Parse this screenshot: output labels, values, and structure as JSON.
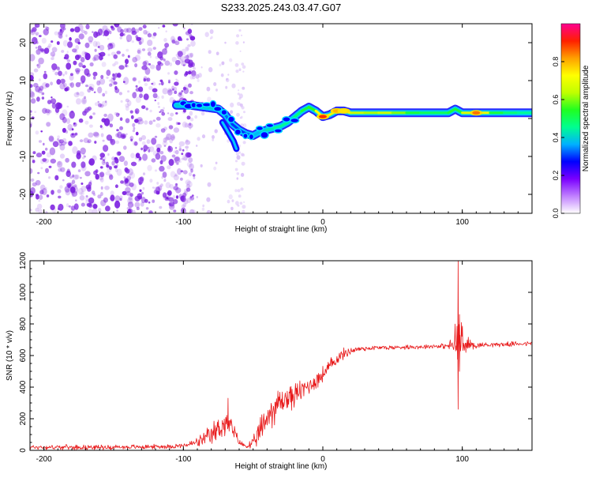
{
  "title": "S233.2025.243.03.47.G07",
  "colors": {
    "snr_line": "#e8191a",
    "axis": "#000000",
    "speckle": "#7b1fe0",
    "track_core": "#ff2020",
    "track_edge": "#2020ff"
  },
  "chart_data": [
    {
      "type": "heatmap",
      "title": "S233.2025.243.03.47.G07",
      "xlabel": "Height of straight line (km)",
      "ylabel": "Frequency (Hz)",
      "xlim": [
        -210,
        150
      ],
      "ylim": [
        -25,
        25
      ],
      "xticks": [
        -200,
        -100,
        0,
        100
      ],
      "yticks": [
        -20,
        -10,
        0,
        10,
        20
      ],
      "colorbar": {
        "label": "Normalized spectral amplitude",
        "range": [
          0.0,
          1.0
        ],
        "ticks": [
          "0.0",
          "0.2",
          "0.4",
          "0.6",
          "0.8"
        ],
        "stops": [
          "#ffffff",
          "#c080ff",
          "#7a00ff",
          "#0000ff",
          "#00b0ff",
          "#00ff90",
          "#20ff20",
          "#c0ff00",
          "#ffff00",
          "#ffa000",
          "#ff2000",
          "#ff0090"
        ]
      },
      "noise_region": {
        "x": [
          -210,
          -100
        ],
        "amplitude": "low"
      },
      "sparse_noise": {
        "x": [
          -100,
          -55
        ],
        "amplitude": "very low"
      },
      "ridge": {
        "x": [
          -105,
          -95,
          -85,
          -75,
          -70,
          -65,
          -60,
          -55,
          -50,
          -45,
          -40,
          -35,
          -30,
          -25,
          -20,
          -15,
          -10,
          -5,
          0,
          5,
          10,
          15,
          20,
          30,
          40,
          50,
          60,
          70,
          80,
          90,
          95,
          100,
          110,
          120,
          130,
          140,
          150
        ],
        "frequency_hz": [
          3.5,
          3.5,
          3.0,
          2.5,
          1.0,
          -1.5,
          -3.0,
          -4.0,
          -4.5,
          -3.5,
          -3.0,
          -2.5,
          -2.0,
          -1.0,
          0.5,
          2.0,
          3.0,
          2.0,
          0.5,
          1.0,
          2.0,
          2.0,
          1.5,
          1.5,
          1.5,
          1.5,
          1.5,
          1.5,
          1.5,
          1.5,
          2.5,
          1.5,
          1.5,
          1.5,
          1.5,
          1.5,
          1.5
        ],
        "amplitude": [
          0.4,
          0.4,
          0.45,
          0.35,
          0.35,
          0.3,
          0.3,
          0.3,
          0.35,
          0.4,
          0.4,
          0.45,
          0.45,
          0.45,
          0.45,
          0.5,
          0.55,
          0.55,
          0.9,
          0.6,
          0.8,
          0.75,
          0.7,
          0.6,
          0.65,
          0.65,
          0.55,
          0.5,
          0.5,
          0.5,
          0.55,
          0.5,
          0.85,
          0.55,
          0.5,
          0.45,
          0.45
        ]
      },
      "branch": {
        "x": [
          -72,
          -68,
          -64,
          -62
        ],
        "frequency_hz": [
          -1.0,
          -3.5,
          -6.0,
          -8.0
        ]
      }
    },
    {
      "type": "line",
      "xlabel": "Height of straight line (km)",
      "ylabel": "SNR (10 * v/v)",
      "xlim": [
        -210,
        150
      ],
      "ylim": [
        0,
        1200
      ],
      "xticks": [
        -200,
        -100,
        0,
        100
      ],
      "yticks": [
        0,
        200,
        400,
        600,
        800,
        1000,
        1200
      ],
      "series": [
        {
          "name": "SNR",
          "x": [
            -210,
            -190,
            -170,
            -150,
            -130,
            -110,
            -100,
            -90,
            -80,
            -75,
            -70,
            -65,
            -60,
            -55,
            -50,
            -45,
            -40,
            -35,
            -30,
            -25,
            -20,
            -15,
            -10,
            -5,
            0,
            5,
            10,
            15,
            20,
            25,
            30,
            40,
            50,
            60,
            70,
            80,
            90,
            93,
            95,
            97,
            99,
            101,
            105,
            110,
            120,
            130,
            140,
            150
          ],
          "y": [
            20,
            20,
            20,
            20,
            22,
            25,
            30,
            50,
            90,
            140,
            170,
            140,
            50,
            25,
            40,
            120,
            210,
            270,
            310,
            330,
            350,
            380,
            410,
            440,
            480,
            530,
            580,
            610,
            630,
            640,
            645,
            650,
            650,
            655,
            655,
            660,
            660,
            665,
            680,
            680,
            665,
            660,
            670,
            665,
            670,
            670,
            675,
            675
          ],
          "noise_amplitude": [
            15,
            15,
            15,
            15,
            15,
            15,
            15,
            30,
            70,
            90,
            90,
            60,
            20,
            15,
            40,
            90,
            110,
            110,
            100,
            90,
            80,
            70,
            60,
            60,
            55,
            50,
            45,
            35,
            25,
            20,
            18,
            15,
            15,
            15,
            15,
            15,
            18,
            60,
            150,
            350,
            200,
            80,
            40,
            20,
            15,
            15,
            15,
            15
          ]
        }
      ],
      "peaks": [
        {
          "x": 97,
          "y": 1200
        },
        {
          "x": 97,
          "y": 260
        },
        {
          "x": -68,
          "y": 330
        },
        {
          "x": 98,
          "y": 860
        }
      ]
    }
  ]
}
